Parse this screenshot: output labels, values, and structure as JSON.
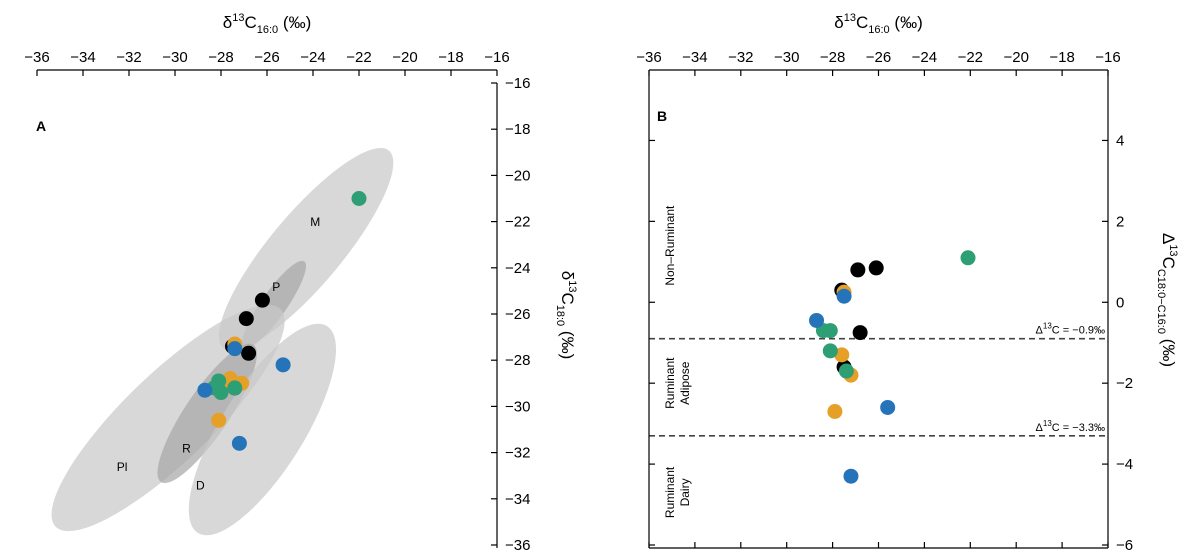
{
  "chart_data": [
    {
      "panel": "A",
      "type": "scatter",
      "xlabel": {
        "base": "δ",
        "sup": "13",
        "main": "C",
        "sub": "16:0",
        "unit": "(‰)"
      },
      "ylabel": {
        "base": "δ",
        "sup": "13",
        "main": "C",
        "sub": "18:0",
        "unit": "(‰)"
      },
      "xlim": [
        -36,
        -16
      ],
      "ylim": [
        -36,
        -16
      ],
      "x_ticks": [
        -36,
        -34,
        -32,
        -30,
        -28,
        -26,
        -24,
        -22,
        -20,
        -18,
        -16
      ],
      "y_ticks": [
        -36,
        -34,
        -32,
        -30,
        -28,
        -26,
        -24,
        -22,
        -20,
        -18,
        -16
      ],
      "x_tick_labels": [
        "−36",
        "−34",
        "−32",
        "−30",
        "−28",
        "−26",
        "−24",
        "−22",
        "−20",
        "−18",
        "−16"
      ],
      "y_tick_labels": [
        "−36",
        "−34",
        "−32",
        "−30",
        "−28",
        "−26",
        "−24",
        "−22",
        "−20",
        "−18",
        "−16"
      ],
      "grid": false,
      "x_axis_position": "top",
      "y_axis_position": "right",
      "reference_ellipses": [
        {
          "label": "M",
          "cx": -24.3,
          "cy": -23.2,
          "rx": 5.6,
          "ry": 1.55,
          "angle_deg": 50,
          "shade": "#c9c9c9",
          "label_x": -23.9,
          "label_y": -22.2
        },
        {
          "label": "P",
          "cx": -25.7,
          "cy": -25.6,
          "rx": 2.3,
          "ry": 0.55,
          "angle_deg": 55,
          "shade": "#a8a8a8",
          "label_x": -25.6,
          "label_y": -25.0
        },
        {
          "label": "Pl",
          "cx": -30.3,
          "cy": -30.5,
          "rx": 6.8,
          "ry": 1.9,
          "angle_deg": 44,
          "shade": "#c9c9c9",
          "label_x": -32.3,
          "label_y": -32.8
        },
        {
          "label": "R",
          "cx": -28.6,
          "cy": -30.3,
          "rx": 3.6,
          "ry": 0.95,
          "angle_deg": 56,
          "shade": "#a8a8a8",
          "label_x": -29.5,
          "label_y": -32.0
        },
        {
          "label": "D",
          "cx": -26.2,
          "cy": -31.0,
          "rx": 5.3,
          "ry": 1.8,
          "angle_deg": 58,
          "shade": "#c9c9c9",
          "label_x": -28.9,
          "label_y": -33.6
        }
      ],
      "series": [
        {
          "color": "#000000",
          "points": [
            [
              -26.2,
              -25.4
            ],
            [
              -26.9,
              -26.2
            ],
            [
              -27.5,
              -27.4
            ],
            [
              -26.8,
              -27.7
            ],
            [
              -27.4,
              -29.2
            ]
          ]
        },
        {
          "color": "#e69f27",
          "points": [
            [
              -27.4,
              -27.3
            ],
            [
              -27.6,
              -28.8
            ],
            [
              -27.1,
              -29.0
            ],
            [
              -28.1,
              -30.6
            ],
            [
              -27.7,
              -28.9
            ]
          ]
        },
        {
          "color": "#2e9e74",
          "points": [
            [
              -22.0,
              -21.0
            ],
            [
              -28.1,
              -28.9
            ],
            [
              -28.3,
              -29.2
            ],
            [
              -27.4,
              -29.2
            ],
            [
              -28.0,
              -29.4
            ]
          ]
        },
        {
          "color": "#2574b9",
          "points": [
            [
              -27.4,
              -27.5
            ],
            [
              -25.3,
              -28.2
            ],
            [
              -28.7,
              -29.3
            ],
            [
              -27.2,
              -31.6
            ]
          ]
        }
      ]
    },
    {
      "panel": "B",
      "type": "scatter",
      "xlabel": {
        "base": "δ",
        "sup": "13",
        "main": "C",
        "sub": "16:0",
        "unit": "(‰)"
      },
      "ylabel": {
        "base": "Δ",
        "sup": "13",
        "main": "C",
        "sub": "C18:0−C16:0",
        "unit": "(‰)"
      },
      "xlim": [
        -36,
        -16
      ],
      "ylim": [
        -6,
        5
      ],
      "x_ticks": [
        -36,
        -34,
        -32,
        -30,
        -28,
        -26,
        -24,
        -22,
        -20,
        -18,
        -16
      ],
      "y_ticks": [
        -6,
        -4,
        -2,
        0,
        2,
        4
      ],
      "x_tick_labels": [
        "−36",
        "−34",
        "−32",
        "−30",
        "−28",
        "−26",
        "−24",
        "−22",
        "−20",
        "−18",
        "−16"
      ],
      "y_tick_labels": [
        "−6",
        "−4",
        "−2",
        "0",
        "2",
        "4"
      ],
      "grid": false,
      "x_axis_position": "top",
      "y_axis_position": "right",
      "reference_lines": [
        {
          "y": -0.9,
          "style": "dashed",
          "label": {
            "base": "Δ",
            "sup": "13",
            "text": "C = −0.9‰"
          }
        },
        {
          "y": -3.3,
          "style": "dashed",
          "label": {
            "base": "Δ",
            "sup": "13",
            "text": "C = −3.3‰"
          }
        }
      ],
      "region_labels": [
        {
          "lines": [
            "Non–Ruminant"
          ],
          "x": -34.9,
          "y": 1.4
        },
        {
          "lines": [
            "Ruminant",
            "Adipose"
          ],
          "x": -34.9,
          "y": -2.0
        },
        {
          "lines": [
            "Ruminant",
            "Dairy"
          ],
          "x": -34.9,
          "y": -4.7
        }
      ],
      "series": [
        {
          "color": "#000000",
          "points": [
            [
              -26.9,
              0.8
            ],
            [
              -26.1,
              0.85
            ],
            [
              -27.6,
              0.3
            ],
            [
              -26.8,
              -0.75
            ],
            [
              -27.5,
              -1.6
            ]
          ]
        },
        {
          "color": "#e69f27",
          "points": [
            [
              -27.5,
              0.25
            ],
            [
              -27.6,
              -1.3
            ],
            [
              -27.2,
              -1.8
            ],
            [
              -27.9,
              -2.7
            ]
          ]
        },
        {
          "color": "#2e9e74",
          "points": [
            [
              -22.1,
              1.1
            ],
            [
              -28.4,
              -0.7
            ],
            [
              -28.1,
              -0.7
            ],
            [
              -28.1,
              -1.2
            ],
            [
              -27.4,
              -1.7
            ]
          ]
        },
        {
          "color": "#2574b9",
          "points": [
            [
              -27.5,
              0.15
            ],
            [
              -28.7,
              -0.45
            ],
            [
              -25.6,
              -2.6
            ],
            [
              -27.2,
              -4.3
            ]
          ]
        }
      ]
    }
  ]
}
